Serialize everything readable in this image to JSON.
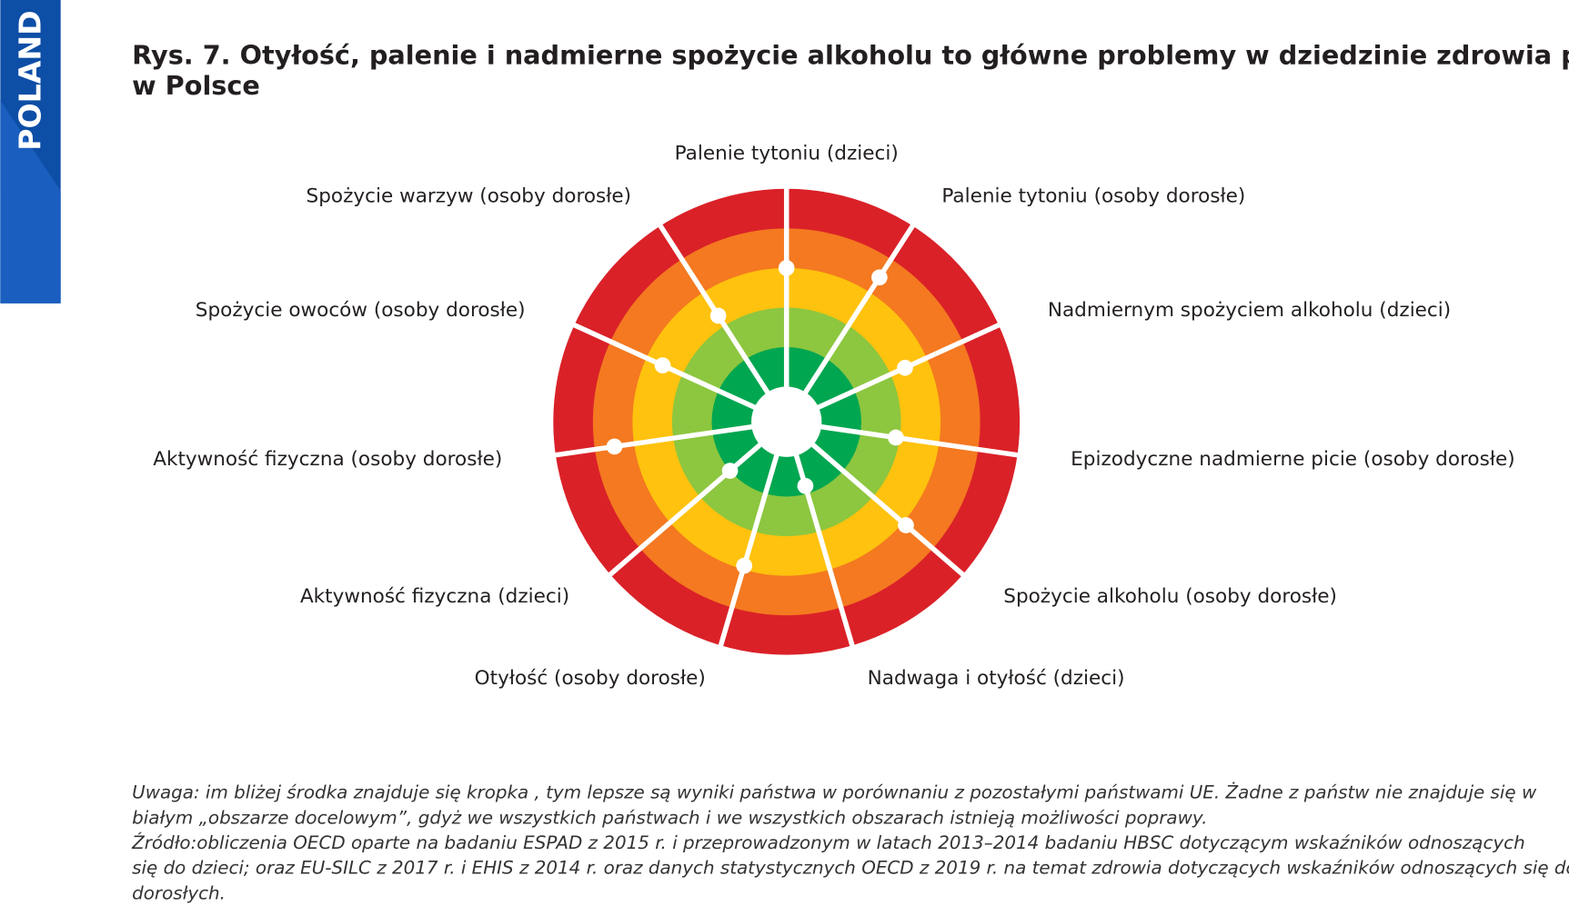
{
  "sidebar": "POLAND",
  "title": [
    "Rys. 7. Otyłość, palenie i nadmierne spożycie alkoholu to główne problemy w dziedzinie zdrowia publicznego",
    "w Polsce"
  ],
  "chart_data": {
    "type": "radial",
    "categories": [
      "Palenie tytoniu (dzieci)",
      "Palenie tytoniu (osoby dorosłe)",
      "Nadmiernym spożyciem alkoholu (dzieci)",
      "Epizodyczne nadmierne picie (osoby dorosłe)",
      "Spożycie alkoholu (osoby dorosłe)",
      "Nadwaga i otyłość (dzieci)",
      "Otyłość (osoby dorosłe)",
      "Aktywność fizyczna (dzieci)",
      "Aktywność fizyczna (osoby dorosłe)",
      "Spożycie owoców (osoby dorosłe)",
      "Spożycie warzyw (osoby dorosłe)"
    ],
    "values": [
      3.0,
      3.45,
      2.4,
      1.9,
      3.1,
      0.8,
      2.9,
      1.0,
      3.5,
      2.55,
      2.3
    ],
    "rlim": [
      0,
      5
    ],
    "band_colors": [
      "#00a650",
      "#8dc63f",
      "#ffc20e",
      "#f47920",
      "#da2128"
    ],
    "marker_color": "#ffffff"
  },
  "note": [
    "Uwaga: im bliżej środka znajduje się kropka , tym lepsze są wyniki państwa w porównaniu z pozostałymi państwami UE. Żadne z państw nie znajduje się w",
    "białym „obszarze docelowym”, gdyż we wszystkich państwach i we wszystkich obszarach istnieją możliwości poprawy.",
    "Źródło:obliczenia OECD oparte na badaniu ESPAD z 2015 r. i przeprowadzonym w latach 2013–2014 badaniu HBSC dotyczącym wskaźników odnoszących",
    "się do dzieci; oraz EU-SILC z 2017 r. i EHIS z 2014 r. oraz danych statystycznych OECD z 2019 r. na temat zdrowia dotyczących wskaźników odnoszących się do",
    "dorosłych."
  ]
}
